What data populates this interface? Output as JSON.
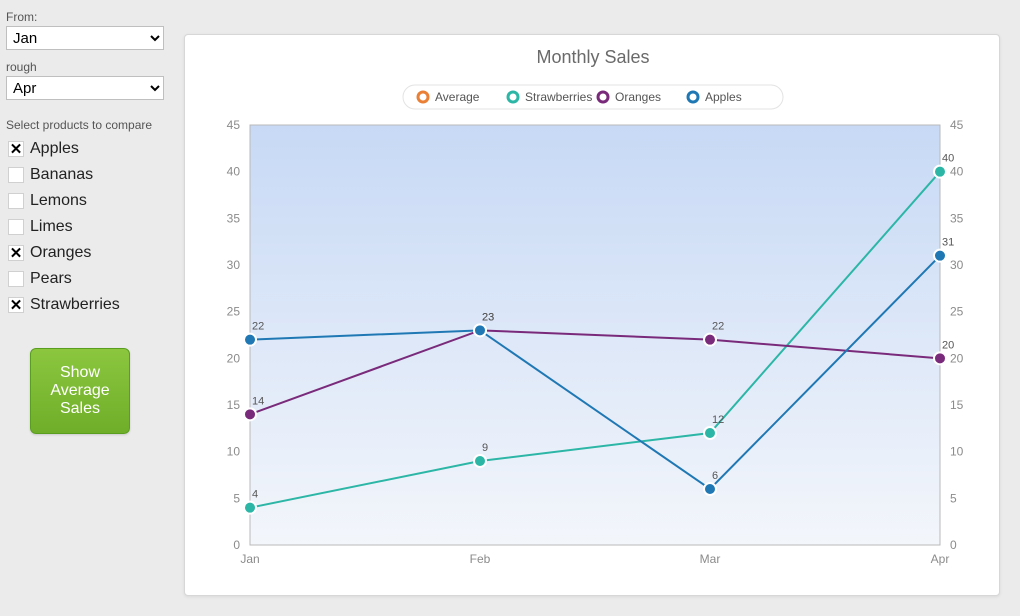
{
  "sidebar": {
    "from_label": "From:",
    "from_value": "Jan",
    "through_label": "rough",
    "through_value": "Apr",
    "compare_label": "Select products to compare",
    "products": [
      {
        "label": "Apples",
        "checked": true
      },
      {
        "label": "Bananas",
        "checked": false
      },
      {
        "label": "Lemons",
        "checked": false
      },
      {
        "label": "Limes",
        "checked": false
      },
      {
        "label": "Oranges",
        "checked": true
      },
      {
        "label": "Pears",
        "checked": false
      },
      {
        "label": "Strawberries",
        "checked": true
      }
    ],
    "avg_button": "Show\nAverage\nSales"
  },
  "chart": {
    "type": "line",
    "title": "Monthly Sales",
    "background_gradient": [
      "#c7d9f5",
      "#f3f6fb"
    ],
    "plot_border_color": "#b9b9b9",
    "gridline_color": "none",
    "axis_text_color": "#8b8b8b",
    "categories": [
      "Jan",
      "Feb",
      "Mar",
      "Apr"
    ],
    "y": {
      "min": 0,
      "max": 45,
      "step": 5
    },
    "legend": {
      "items": [
        "Average",
        "Strawberries",
        "Oranges",
        "Apples"
      ],
      "colors": {
        "Average": "#e98036",
        "Strawberries": "#2cb6a6",
        "Oranges": "#7a2a7a",
        "Apples": "#1f78b4"
      },
      "pill_bg": "#ffffff",
      "pill_border": "#e3e3e3"
    },
    "series": [
      {
        "name": "Strawberries",
        "color": "#2cb6a6",
        "stroke_width": 2,
        "marker_radius": 6,
        "values": [
          4,
          9,
          12,
          40
        ]
      },
      {
        "name": "Oranges",
        "color": "#7a2a7a",
        "stroke_width": 2,
        "marker_radius": 6,
        "values": [
          14,
          23,
          22,
          20
        ]
      },
      {
        "name": "Apples",
        "color": "#1f78b4",
        "stroke_width": 2,
        "marker_radius": 6,
        "values": [
          22,
          23,
          6,
          31
        ]
      }
    ],
    "label_fontsize": 11,
    "title_fontsize": 18
  }
}
